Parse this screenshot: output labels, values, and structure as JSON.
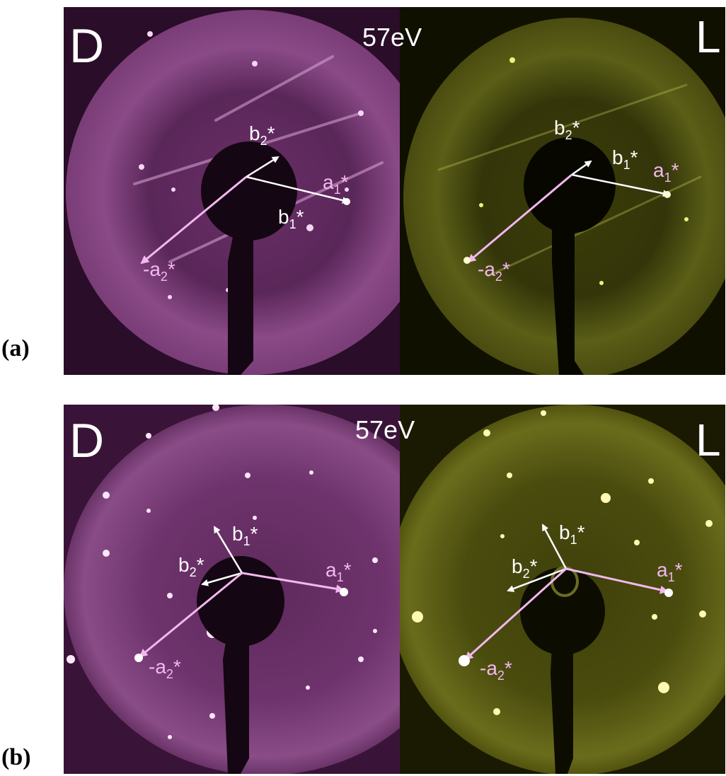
{
  "panels": [
    {
      "letter": "(a)",
      "energy": "57eV",
      "left_tag": "D",
      "right_tag": "L",
      "left_vectors": {
        "b2": "b",
        "b2_sub": "2",
        "b1": "b",
        "b1_sub": "1",
        "a1": "a",
        "a1_sub": "1",
        "ma2": "-a",
        "ma2_sub": "2",
        "star": "*"
      },
      "right_vectors": {
        "b2": "b",
        "b2_sub": "2",
        "b1": "b",
        "b1_sub": "1",
        "a1": "a",
        "a1_sub": "1",
        "ma2": "-a",
        "ma2_sub": "2",
        "star": "*"
      }
    },
    {
      "letter": "(b)",
      "energy": "57eV",
      "left_tag": "D",
      "right_tag": "L",
      "left_vectors": {
        "b1": "b",
        "b1_sub": "1",
        "b2": "b",
        "b2_sub": "2",
        "a1": "a",
        "a1_sub": "1",
        "ma2": "-a",
        "ma2_sub": "2",
        "star": "*"
      },
      "right_vectors": {
        "b1": "b",
        "b1_sub": "1",
        "b2": "b",
        "b2_sub": "2",
        "a1": "a",
        "a1_sub": "1",
        "ma2": "-a",
        "ma2_sub": "2",
        "star": "*"
      }
    }
  ],
  "colors": {
    "magenta_bg": "#2a0d29",
    "magenta_screen": "#7a3a78",
    "yellow_bg": "#101000",
    "yellow_screen": "#4a4c0a",
    "white_arrow": "#ffffff",
    "pink_arrow": "#f3b8ef"
  }
}
